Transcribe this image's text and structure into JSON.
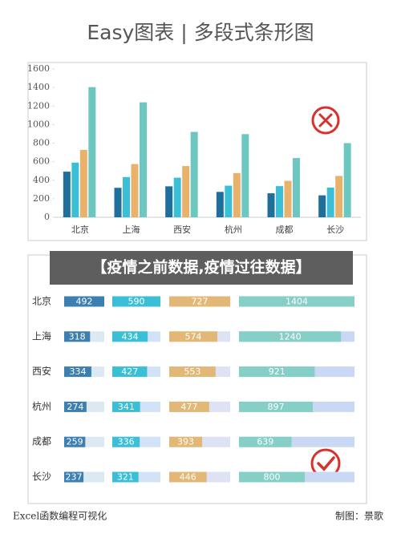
{
  "header": {
    "title": "Easy图表 | 多段式条形图"
  },
  "banner": "【疫情之前数据,疫情过往数据】",
  "footer": {
    "left": "Excel函数编程可视化",
    "right": "制图：景歌"
  },
  "chart_data": [
    {
      "type": "bar",
      "categories": [
        "北京",
        "上海",
        "西安",
        "杭州",
        "成都",
        "长沙"
      ],
      "series": [
        {
          "color": "#1f6e9c",
          "values": [
            492,
            318,
            334,
            274,
            259,
            237
          ]
        },
        {
          "color": "#3bbfd6",
          "values": [
            590,
            434,
            427,
            341,
            336,
            321
          ]
        },
        {
          "color": "#e8b26b",
          "values": [
            727,
            574,
            553,
            477,
            393,
            446
          ]
        },
        {
          "color": "#6cc7c0",
          "values": [
            1404,
            1240,
            921,
            897,
            639,
            800
          ]
        }
      ],
      "ylim": [
        0,
        1600
      ],
      "yticks": [
        0,
        200,
        400,
        600,
        800,
        1000,
        1200,
        1400,
        1600
      ],
      "grid": false
    },
    {
      "type": "cell-bar",
      "categories": [
        "北京",
        "上海",
        "西安",
        "杭州",
        "成都",
        "长沙"
      ],
      "series": [
        {
          "color": "#3d7fb0",
          "track_color": "#dce9f3",
          "values": [
            492,
            318,
            334,
            274,
            259,
            237
          ]
        },
        {
          "color": "#3bbfd6",
          "track_color": "#d3e3f7",
          "values": [
            590,
            434,
            427,
            341,
            336,
            321
          ]
        },
        {
          "color": "#e3b877",
          "track_color": "#dde2f5",
          "values": [
            727,
            574,
            553,
            477,
            393,
            446
          ]
        },
        {
          "color": "#86cfc6",
          "track_color": "#c9d8f5",
          "values": [
            1404,
            1240,
            921,
            897,
            639,
            800
          ]
        }
      ]
    }
  ]
}
